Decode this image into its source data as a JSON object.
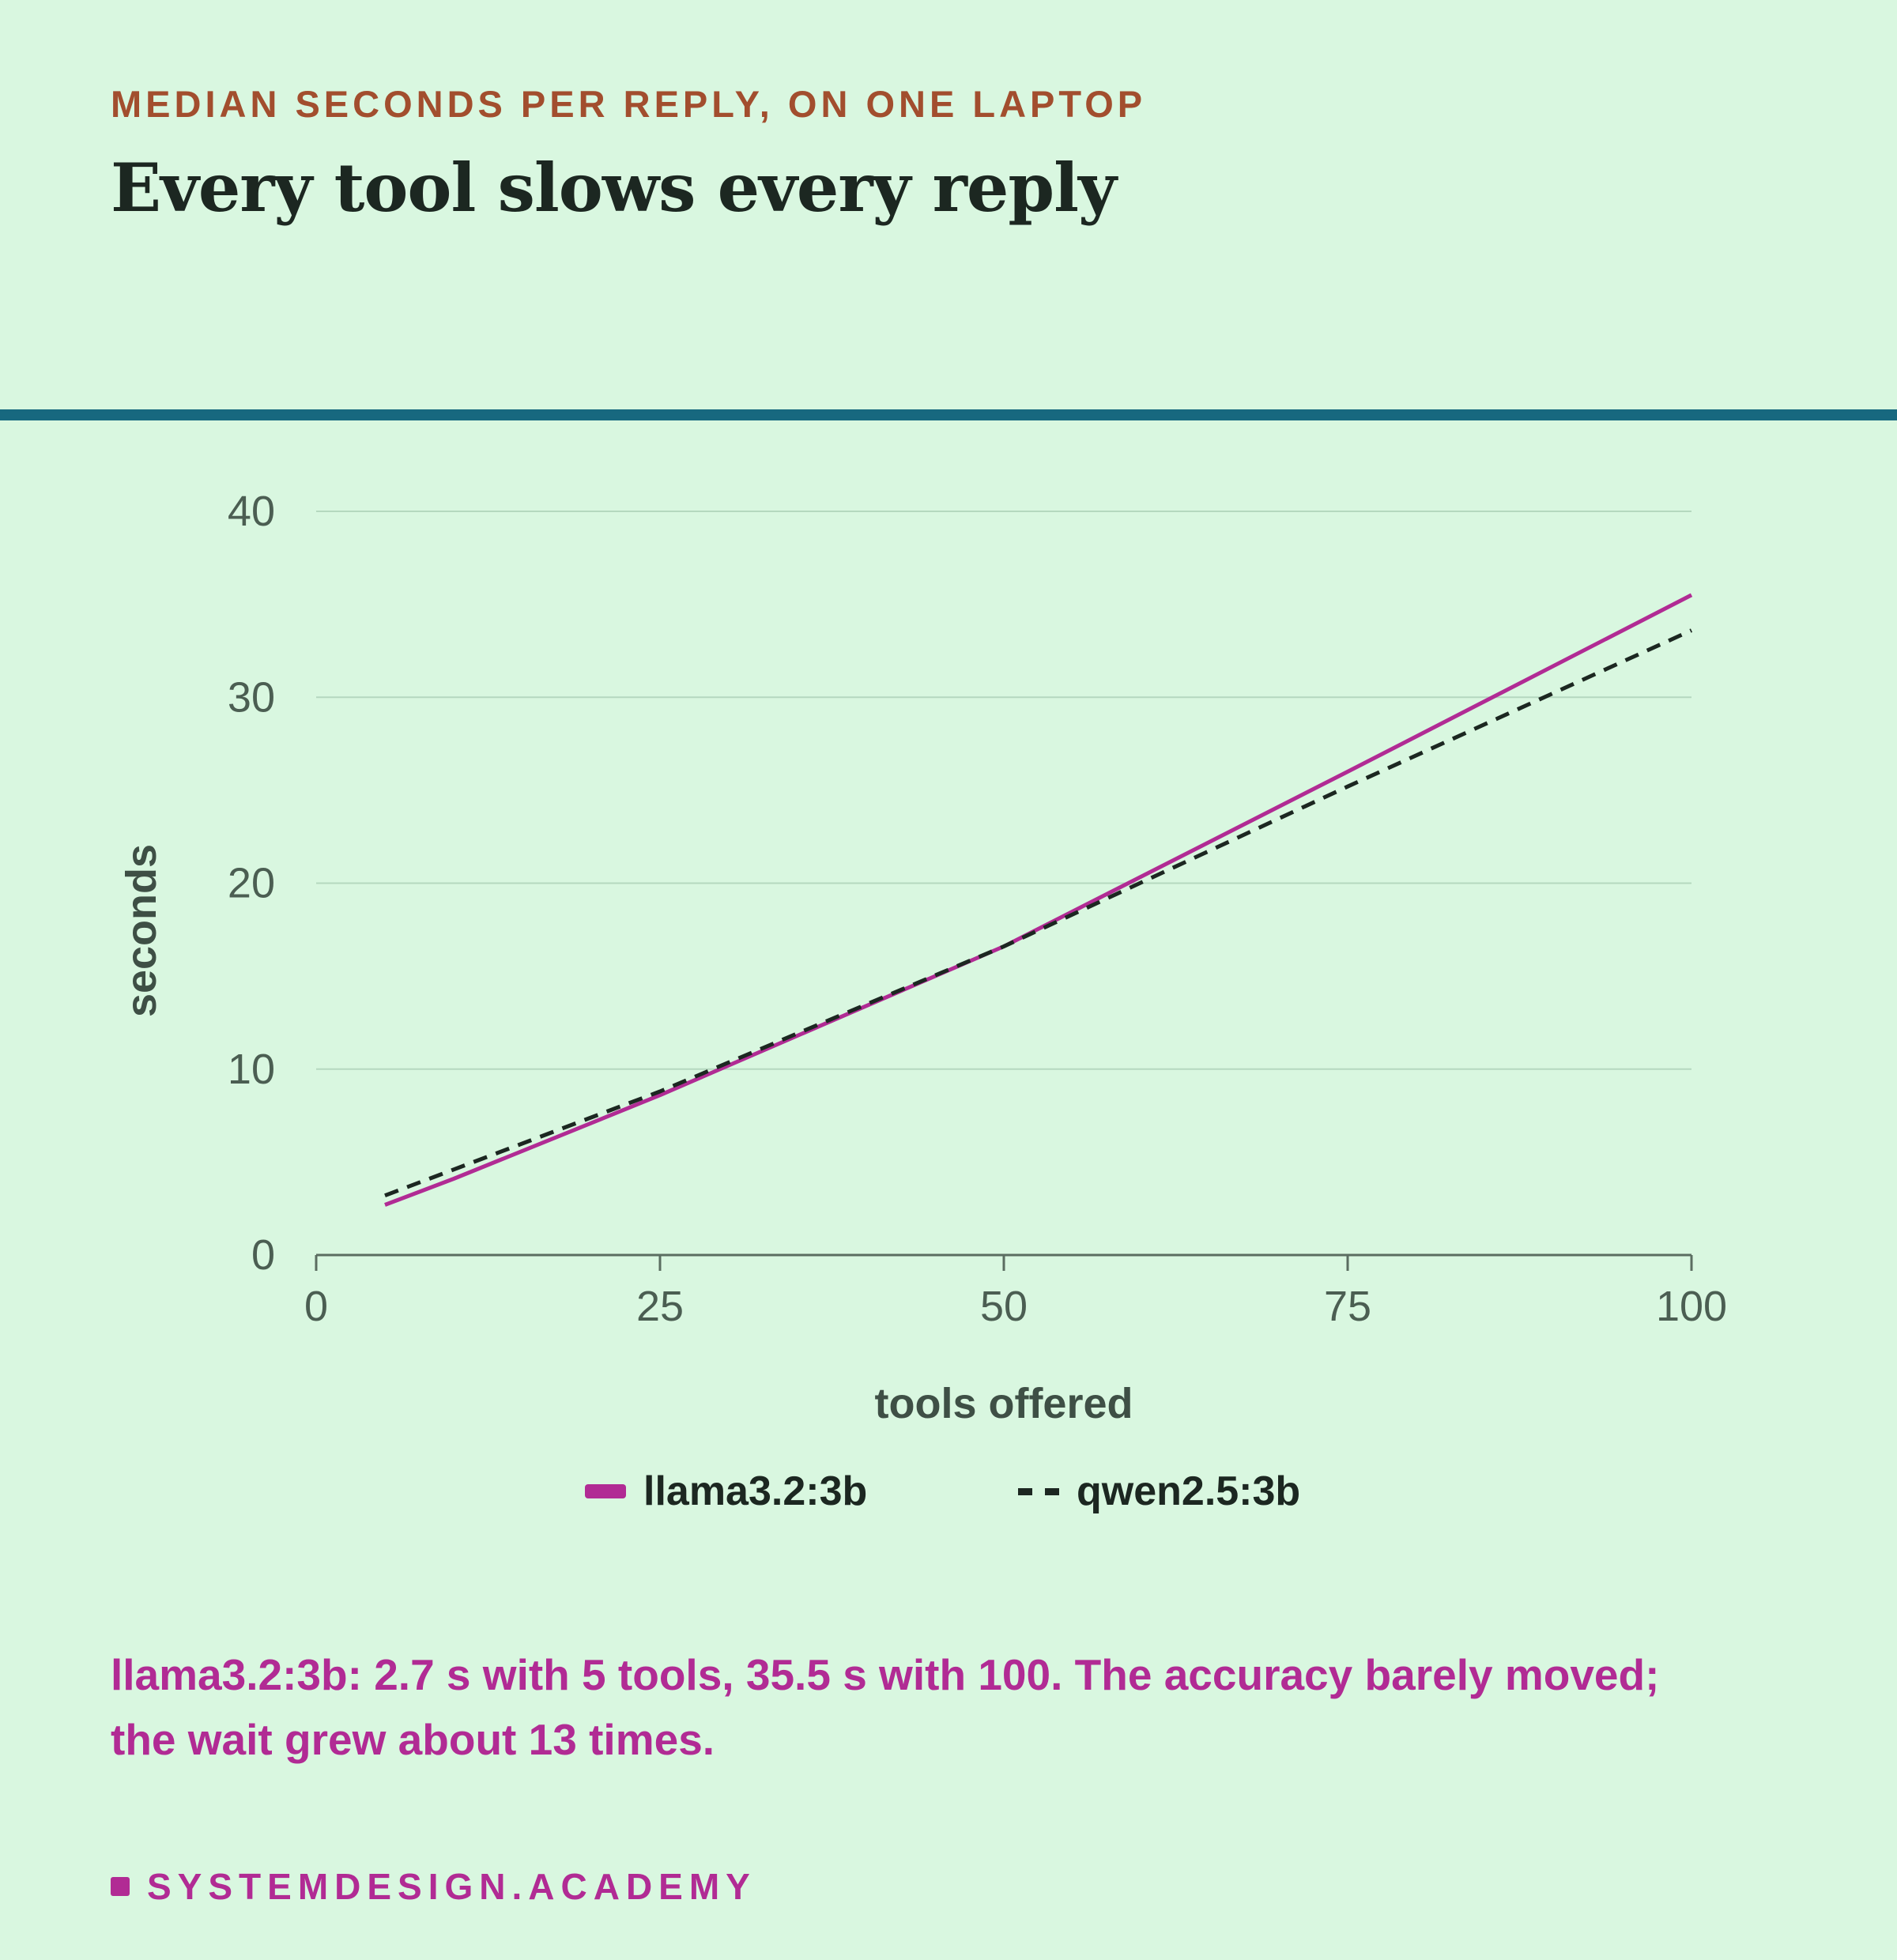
{
  "header": {
    "kicker": "MEDIAN SECONDS PER REPLY, ON ONE LAPTOP",
    "title": "Every tool slows every reply"
  },
  "chart_data": {
    "type": "line",
    "xlabel": "tools offered",
    "ylabel": "seconds",
    "xlim": [
      0,
      100
    ],
    "ylim": [
      0,
      40
    ],
    "xticks": [
      0,
      25,
      50,
      75,
      100
    ],
    "yticks": [
      0,
      10,
      20,
      30,
      40
    ],
    "grid": true,
    "legend_position": "bottom",
    "series": [
      {
        "name": "llama3.2:3b",
        "style": "solid",
        "color": "#b12b94",
        "x": [
          5,
          10,
          25,
          50,
          75,
          100
        ],
        "y": [
          2.7,
          4.1,
          8.6,
          16.6,
          26.0,
          35.5
        ]
      },
      {
        "name": "qwen2.5:3b",
        "style": "dashed",
        "color": "#1c2721",
        "x": [
          5,
          10,
          25,
          50,
          75,
          100
        ],
        "y": [
          3.2,
          4.6,
          8.8,
          16.6,
          25.2,
          33.6
        ]
      }
    ]
  },
  "note": "llama3.2:3b: 2.7 s with 5 tools, 35.5 s with 100. The accuracy barely moved; the wait grew about 13 times.",
  "brand": "SYSTEMDESIGN.ACADEMY"
}
